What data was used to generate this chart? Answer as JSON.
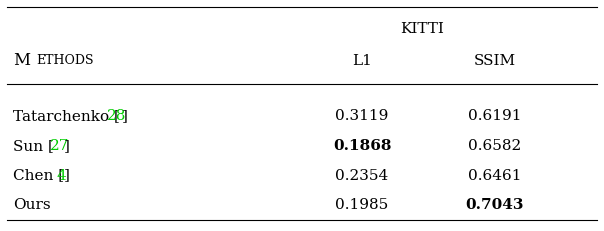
{
  "title": "KITTI",
  "col_headers": [
    "L1",
    "SSIM"
  ],
  "row_header": "Methods",
  "rows": [
    {
      "method": "Tatarchenko [28]",
      "method_parts": [
        {
          "text": "Tatarchenko [",
          "color": "#000000",
          "bold": false
        },
        {
          "text": "28",
          "color": "#00cc00",
          "bold": false
        },
        {
          "text": "]",
          "color": "#000000",
          "bold": false
        }
      ],
      "values": [
        "0.3119",
        "0.6191"
      ],
      "bold": [
        false,
        false
      ]
    },
    {
      "method": "Sun [27]",
      "method_parts": [
        {
          "text": "Sun [",
          "color": "#000000",
          "bold": false
        },
        {
          "text": "27",
          "color": "#00cc00",
          "bold": false
        },
        {
          "text": "]",
          "color": "#000000",
          "bold": false
        }
      ],
      "values": [
        "0.1868",
        "0.6582"
      ],
      "bold": [
        true,
        false
      ]
    },
    {
      "method": "Chen [4]",
      "method_parts": [
        {
          "text": "Chen [",
          "color": "#000000",
          "bold": false
        },
        {
          "text": "4",
          "color": "#00cc00",
          "bold": false
        },
        {
          "text": "]",
          "color": "#000000",
          "bold": false
        }
      ],
      "values": [
        "0.2354",
        "0.6461"
      ],
      "bold": [
        false,
        false
      ]
    },
    {
      "method": "Ours",
      "method_parts": [
        {
          "text": "Ours",
          "color": "#000000",
          "bold": false
        }
      ],
      "values": [
        "0.1985",
        "0.7043"
      ],
      "bold": [
        false,
        true
      ]
    }
  ],
  "background_color": "#ffffff",
  "text_color": "#000000",
  "font_size": 11,
  "header_font_size": 11
}
